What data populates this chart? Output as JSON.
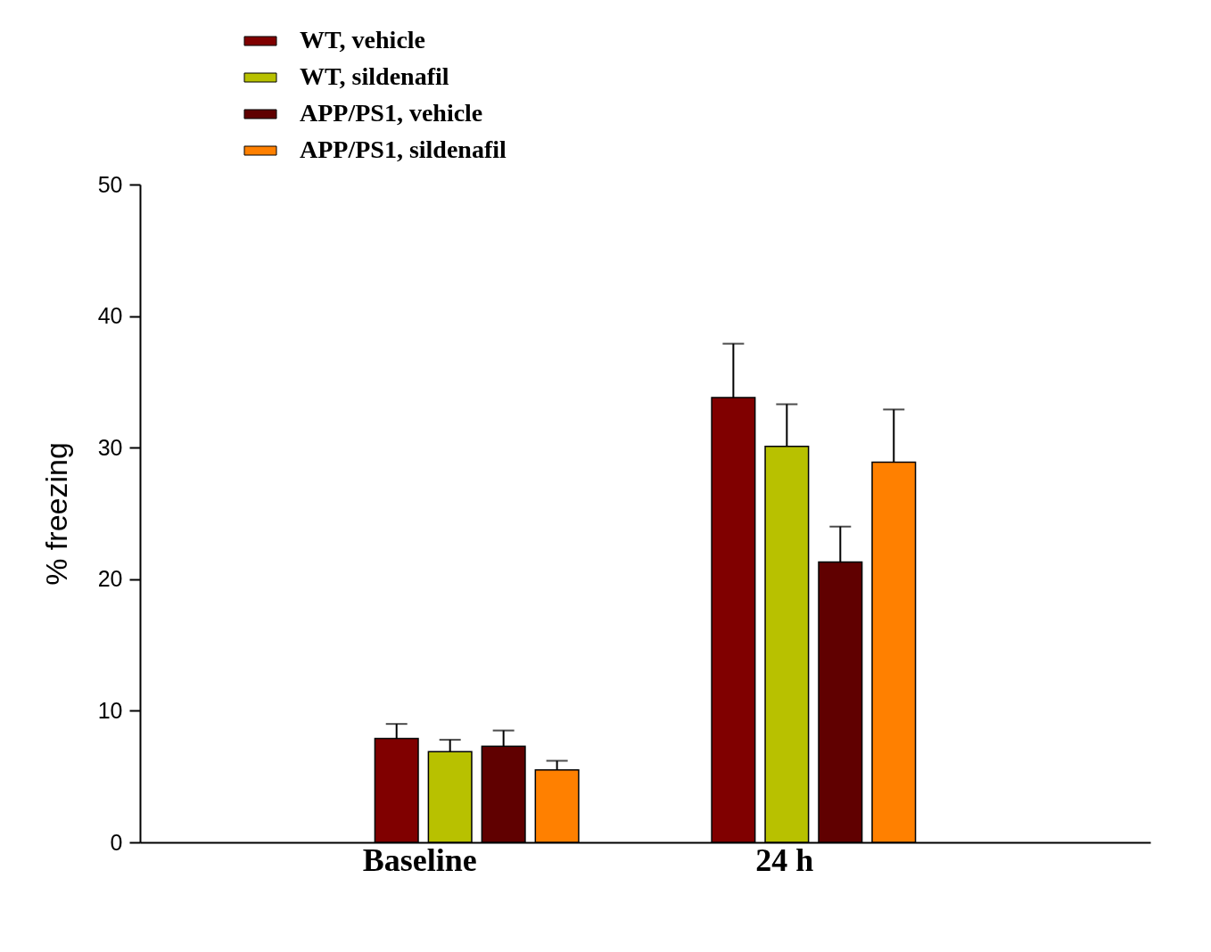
{
  "chart_data": {
    "type": "bar",
    "ylabel": "% freezing",
    "categories": [
      "Baseline",
      "24 h"
    ],
    "series": [
      {
        "name": "WT, vehicle",
        "color": "#800000",
        "values": [
          7.9,
          33.8
        ],
        "errors": [
          [
            7.9,
            9.0
          ],
          [
            33.8,
            37.9
          ]
        ]
      },
      {
        "name": "WT, sildenafil",
        "color": "#b8c100",
        "values": [
          6.9,
          30.1
        ],
        "errors": [
          [
            6.9,
            7.8
          ],
          [
            30.1,
            33.3
          ]
        ]
      },
      {
        "name": "APP/PS1, vehicle",
        "color": "#600000",
        "values": [
          7.3,
          21.3
        ],
        "errors": [
          [
            7.3,
            8.5
          ],
          [
            21.3,
            24.0
          ]
        ]
      },
      {
        "name": "APP/PS1, sildenafil",
        "color": "#ff8000",
        "values": [
          5.5,
          28.9
        ],
        "errors": [
          [
            5.5,
            6.2
          ],
          [
            28.9,
            32.9
          ]
        ]
      }
    ],
    "ylim": [
      0,
      50
    ],
    "yticks": [
      0,
      10,
      20,
      30,
      40,
      50
    ],
    "grid": false,
    "legend": "top left"
  }
}
